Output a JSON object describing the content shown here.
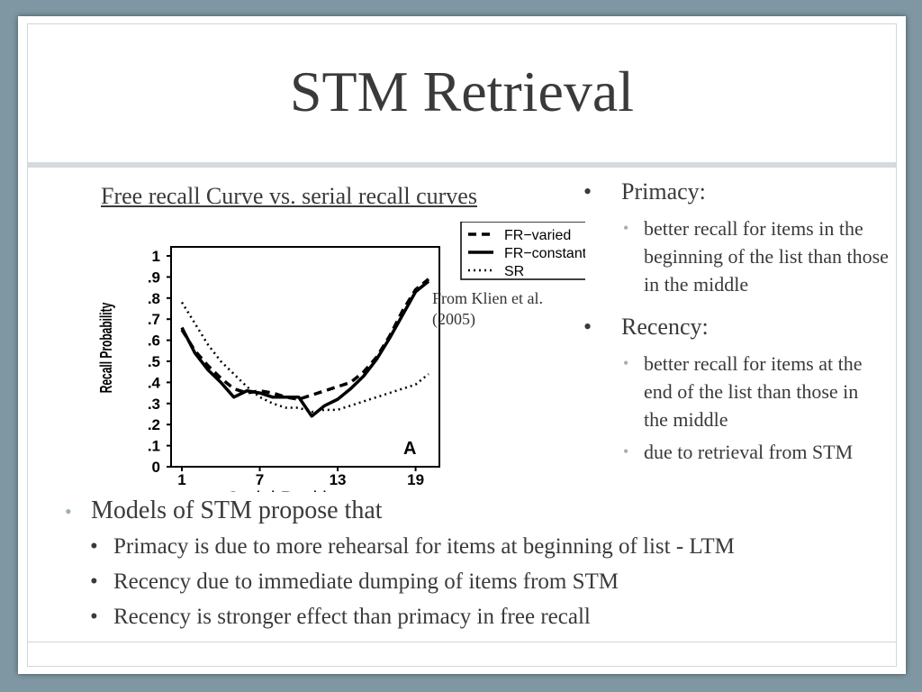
{
  "slide": {
    "title": "STM Retrieval",
    "figure_caption": "Free recall Curve vs. serial recall curves",
    "source_note": "From Klien et al. (2005)"
  },
  "right_bullets": [
    {
      "heading": "Primacy:",
      "subs": [
        "better recall for items in the beginning of the list than those in the middle"
      ]
    },
    {
      "heading": "Recency:",
      "subs": [
        "better recall for items at the end of the list than those in the middle",
        "due to retrieval from STM"
      ]
    }
  ],
  "bottom": {
    "heading": "Models of STM propose that",
    "items": [
      "Primacy is due to more rehearsal for items at beginning of list - LTM",
      "Recency due to immediate dumping of items from STM",
      "Recency is stronger effect than primacy in free recall"
    ]
  },
  "bullet_glyph": "•",
  "colors": {
    "background": "#7f97a2",
    "text": "#3a3a3a",
    "sub_bullet": "#9fb0b8",
    "rule": "#d3dbe0"
  },
  "chart_data": {
    "type": "line",
    "xlabel": "Serial Position",
    "ylabel": "Recall Probability",
    "panel_label": "A",
    "xlim": [
      1,
      20
    ],
    "ylim": [
      0,
      1
    ],
    "x_ticks": [
      1,
      7,
      13,
      19
    ],
    "y_ticks": [
      {
        "v": 0,
        "label": "0"
      },
      {
        "v": 0.1,
        "label": ".1"
      },
      {
        "v": 0.2,
        "label": ".2"
      },
      {
        "v": 0.3,
        "label": ".3"
      },
      {
        "v": 0.4,
        "label": ".4"
      },
      {
        "v": 0.5,
        "label": ".5"
      },
      {
        "v": 0.6,
        "label": ".6"
      },
      {
        "v": 0.7,
        "label": ".7"
      },
      {
        "v": 0.8,
        "label": ".8"
      },
      {
        "v": 0.9,
        "label": ".9"
      },
      {
        "v": 1,
        "label": "1"
      }
    ],
    "legend": "top-right",
    "x": [
      1,
      2,
      3,
      4,
      5,
      6,
      7,
      8,
      9,
      10,
      11,
      12,
      13,
      14,
      15,
      16,
      17,
      18,
      19,
      20
    ],
    "series": [
      {
        "name": "FR−varied",
        "style": "dashed",
        "values": [
          0.65,
          0.55,
          0.48,
          0.42,
          0.37,
          0.35,
          0.36,
          0.35,
          0.33,
          0.32,
          0.34,
          0.36,
          0.38,
          0.4,
          0.45,
          0.52,
          0.62,
          0.74,
          0.84,
          0.89
        ]
      },
      {
        "name": "FR−constant",
        "style": "solid",
        "values": [
          0.66,
          0.54,
          0.46,
          0.4,
          0.33,
          0.36,
          0.35,
          0.33,
          0.33,
          0.33,
          0.24,
          0.29,
          0.32,
          0.37,
          0.43,
          0.51,
          0.61,
          0.72,
          0.83,
          0.88
        ]
      },
      {
        "name": "SR",
        "style": "dotted",
        "values": [
          0.78,
          0.68,
          0.58,
          0.5,
          0.44,
          0.38,
          0.33,
          0.3,
          0.28,
          0.28,
          0.26,
          0.27,
          0.27,
          0.29,
          0.31,
          0.33,
          0.35,
          0.37,
          0.39,
          0.44
        ]
      }
    ]
  }
}
